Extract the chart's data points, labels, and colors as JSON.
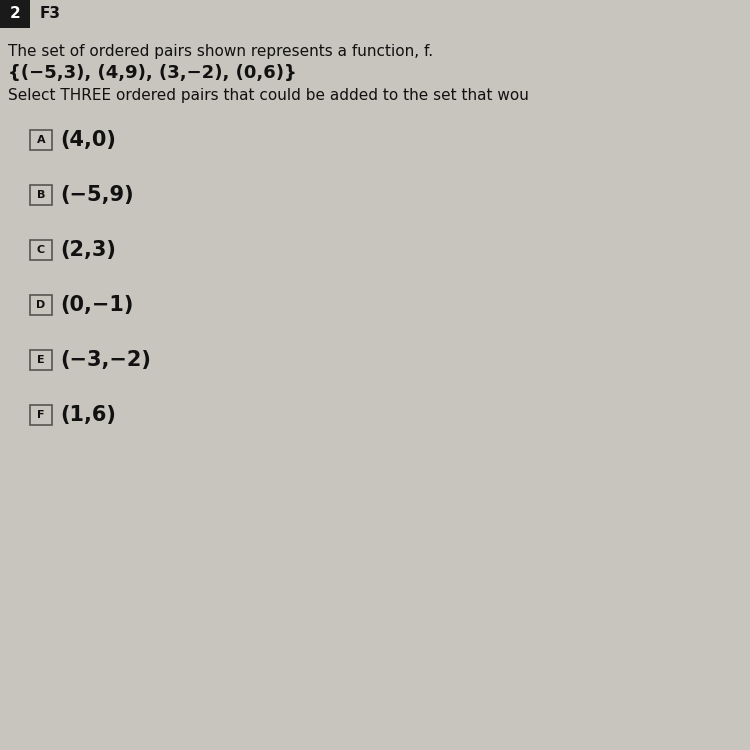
{
  "question_number": "2",
  "tag": "F3",
  "line1": "The set of ordered pairs shown represents a function, f.",
  "line2": "{(−5,3), (4,9), (3,−2), (0,6)}",
  "line3": "Select THREE ordered pairs that could be added to the set that wou",
  "options": [
    {
      "label": "A",
      "text": "(4,0)"
    },
    {
      "label": "B",
      "text": "(−5,9)"
    },
    {
      "label": "C",
      "text": "(2,3)"
    },
    {
      "label": "D",
      "text": "(0,−1)"
    },
    {
      "label": "E",
      "text": "(−3,−2)"
    },
    {
      "label": "F",
      "text": "(1,6)"
    }
  ],
  "bg_color": "#c8c4be",
  "num_box_color": "#1a1a1a",
  "header_bg": "#c8c4be",
  "label_box_facecolor": "#c8c4be",
  "label_box_edgecolor": "#555550",
  "text_color": "#111111",
  "header_text_color": "#ffffff",
  "num_fontsize": 11,
  "tag_fontsize": 11,
  "line1_fontsize": 11,
  "line2_fontsize": 13,
  "line3_fontsize": 11,
  "label_fontsize": 8,
  "option_fontsize": 15
}
